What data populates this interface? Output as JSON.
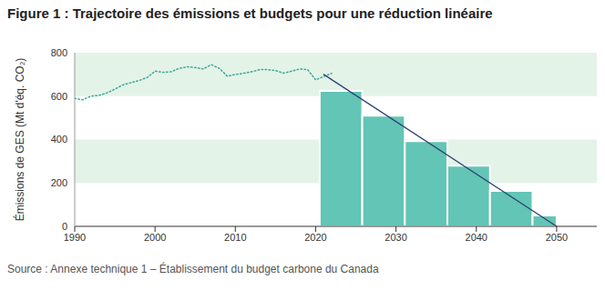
{
  "chart_data": {
    "type": "combo",
    "title": "Figure 1 : Trajectoire des émissions et budgets pour une réduction linéaire",
    "y_label": "Émissions de GES (Mt d'éq. CO₂)",
    "source": "Source : Annexe technique 1 – Établissement du budget carbone du Canada",
    "xlim": [
      1990,
      2055
    ],
    "xticks": [
      1990,
      2000,
      2010,
      2020,
      2030,
      2040,
      2050
    ],
    "ylim": [
      0,
      800
    ],
    "yticks": [
      0,
      200,
      400,
      600,
      800
    ],
    "grid": true,
    "series": [
      {
        "type": "histogram",
        "color": "#63c5b5",
        "bins": [
          2020.5,
          2025.8,
          2031.1,
          2036.4,
          2041.7,
          2047,
          2050
        ],
        "values": [
          624,
          510,
          393,
          280,
          163,
          50
        ]
      },
      {
        "type": "line",
        "color": "#3aa89a",
        "line_style": "dotted",
        "x": [
          1990,
          1991,
          1992,
          1993,
          1994,
          1995,
          1996,
          1997,
          1998,
          1999,
          2000,
          2001,
          2002,
          2003,
          2004,
          2005,
          2006,
          2007,
          2008,
          2009,
          2010,
          2011,
          2012,
          2013,
          2014,
          2015,
          2016,
          2017,
          2018,
          2019,
          2020,
          2021,
          2022
        ],
        "values": [
          590,
          583,
          600,
          603,
          615,
          632,
          652,
          662,
          672,
          685,
          715,
          710,
          712,
          728,
          735,
          732,
          725,
          745,
          728,
          692,
          700,
          705,
          712,
          722,
          722,
          718,
          706,
          715,
          725,
          722,
          675,
          690,
          705
        ]
      },
      {
        "type": "line",
        "color": "#2c3e73",
        "line_style": "solid",
        "x": [
          2021,
          2050
        ],
        "values": [
          700,
          0
        ]
      }
    ]
  }
}
